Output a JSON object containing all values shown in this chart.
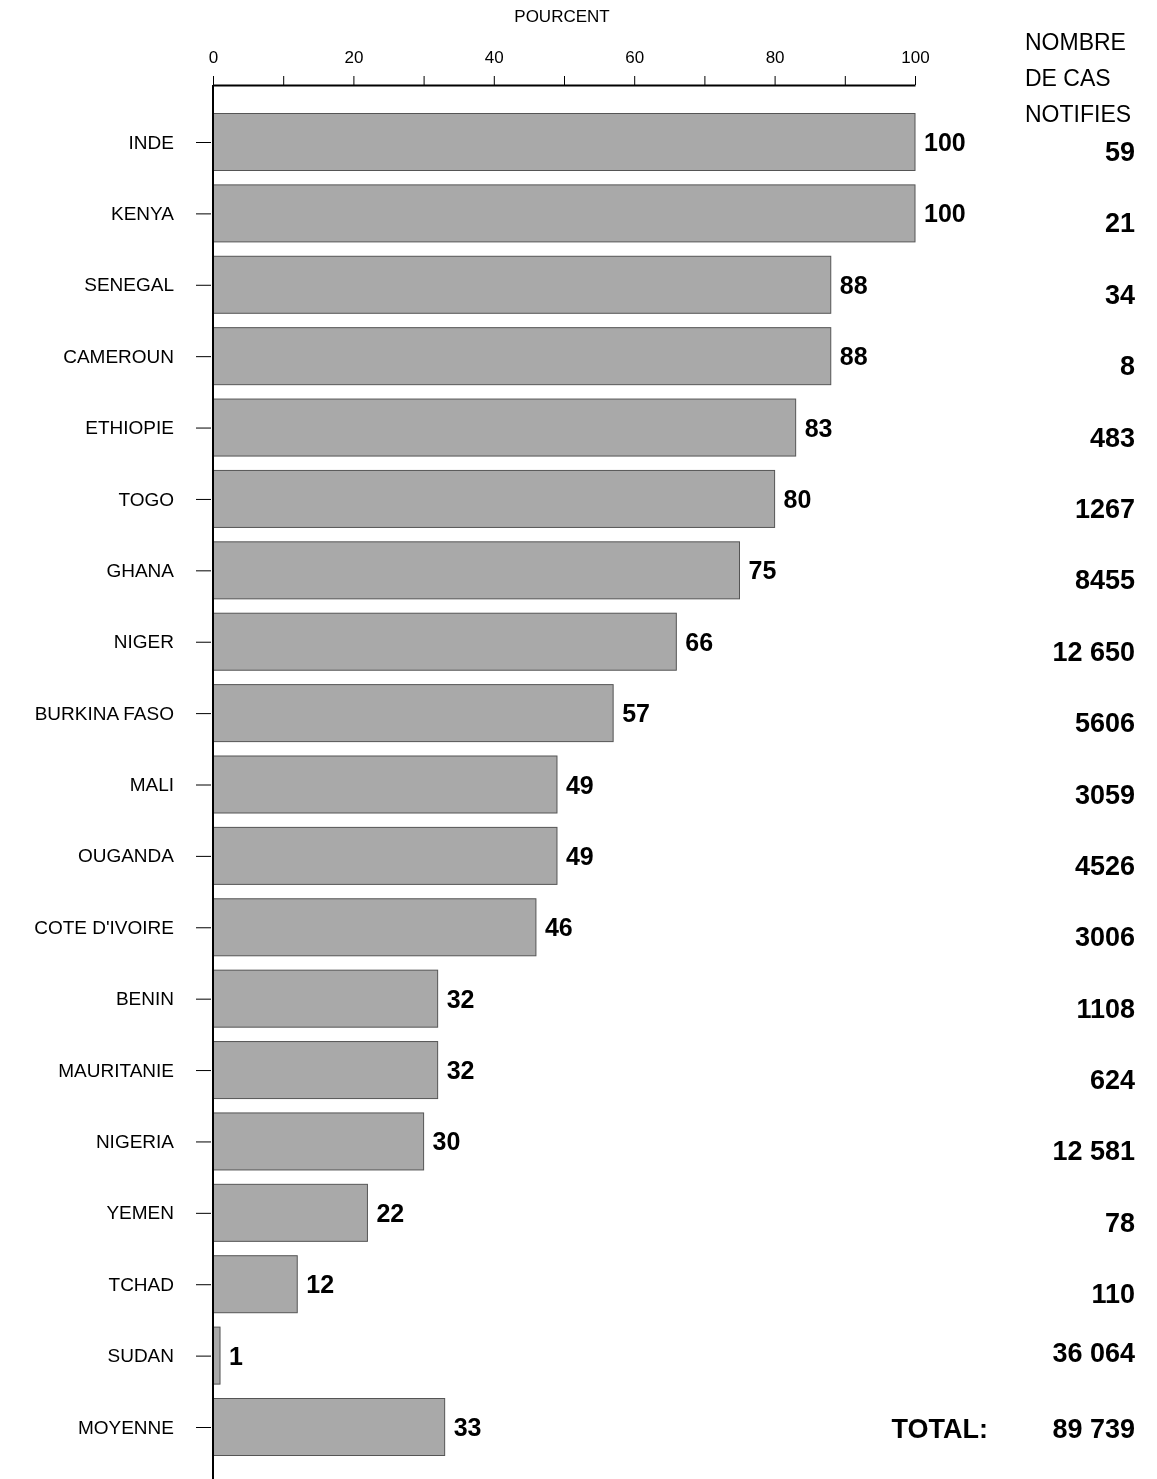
{
  "chart_data": {
    "type": "bar",
    "orientation": "horizontal",
    "xlabel": "POURCENT",
    "categories": [
      "INDE",
      "KENYA",
      "SENEGAL",
      "CAMEROUN",
      "ETHIOPIE",
      "TOGO",
      "GHANA",
      "NIGER",
      "BURKINA FASO",
      "MALI",
      "OUGANDA",
      "COTE D'IVOIRE",
      "BENIN",
      "MAURITANIE",
      "NIGERIA",
      "YEMEN",
      "TCHAD",
      "SUDAN",
      "MOYENNE"
    ],
    "values": [
      100,
      100,
      88,
      88,
      83,
      80,
      75,
      66,
      57,
      49,
      49,
      46,
      32,
      32,
      30,
      22,
      12,
      1,
      33
    ],
    "color": "#a9a9a9",
    "xlim": [
      0,
      100
    ],
    "xticks": [
      0,
      {
        "value": 10,
        "label": null
      },
      20,
      {
        "value": 30,
        "label": null
      },
      40,
      {
        "value": 50,
        "label": null
      },
      60,
      {
        "value": 70,
        "label": null
      },
      80,
      {
        "value": 90,
        "label": null
      },
      100
    ],
    "data_labels": true,
    "grid": false,
    "annotations": [
      "NOMBRE DE CAS NOTIFIES",
      "59",
      "21",
      "34",
      "8",
      "483",
      "1267",
      "8455",
      "12 650",
      "5606",
      "3059",
      "4526",
      "3006",
      "1108",
      "624",
      "12 581",
      "78",
      "110",
      "36 064",
      "TOTAL:",
      "89 739"
    ]
  }
}
